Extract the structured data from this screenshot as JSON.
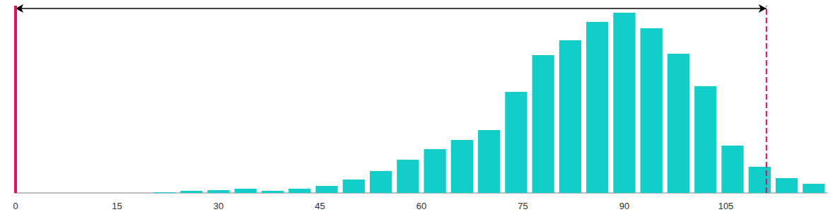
{
  "chart_data": {
    "type": "histogram",
    "bins": [
      20,
      24,
      28,
      32,
      36,
      40,
      44,
      48,
      52,
      56,
      60,
      64,
      68,
      72,
      76,
      80,
      84,
      88,
      92,
      96,
      100,
      104,
      108,
      112,
      116,
      120
    ],
    "values": [
      1,
      3,
      4,
      6,
      3,
      6,
      10,
      19,
      31,
      47,
      62,
      75,
      89,
      143,
      195,
      216,
      242,
      255,
      233,
      197,
      151,
      67,
      37,
      21,
      13
    ],
    "color": "#13cdc9",
    "xlim": [
      0,
      120
    ],
    "xticks": [
      0,
      15,
      30,
      45,
      60,
      75,
      90,
      105
    ],
    "ylim": [
      0,
      265
    ],
    "grid": false,
    "tick_labels": "x",
    "vlines": [
      {
        "value": 0,
        "color": "#e0115f",
        "line_style": "solid"
      },
      {
        "value": 111,
        "color": "#e0115f",
        "line_style": "dashed"
      }
    ],
    "span": [
      0,
      111
    ]
  }
}
